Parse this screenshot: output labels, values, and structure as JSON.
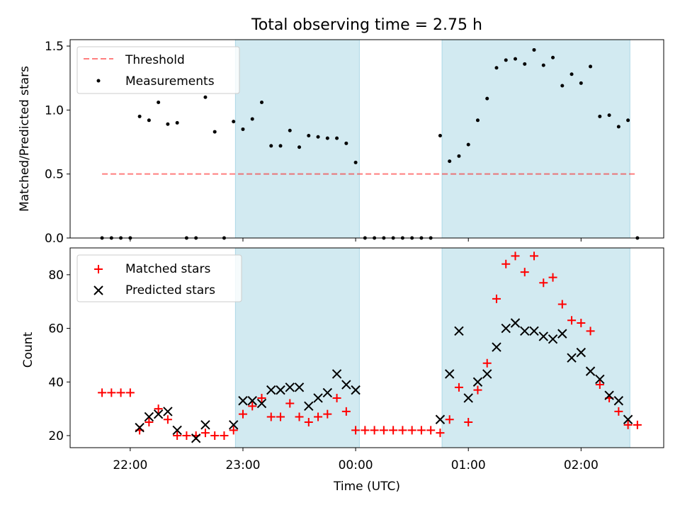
{
  "title": "Total observing time = 2.75 h",
  "colors": {
    "band": "#add8e6",
    "threshold": "#ff0000",
    "measurement": "#000000",
    "matched": "#ff0000",
    "predicted": "#000000"
  },
  "chart_data": [
    {
      "type": "scatter",
      "panel": "top",
      "ylabel": "Matched/Predicted stars",
      "ylim": [
        0,
        1.55
      ],
      "yticks": [
        0,
        0.5,
        1.0,
        1.5
      ],
      "ytick_labels": [
        "0.0",
        "0.5",
        "1.0",
        "1.5"
      ],
      "xlim": [
        "21:28",
        "02:44"
      ],
      "xticks": [
        "22:00",
        "23:00",
        "00:00",
        "01:00",
        "02:00"
      ],
      "legend": "top-left",
      "shaded_intervals": [
        [
          "22:56",
          "00:02"
        ],
        [
          "00:46",
          "02:26"
        ]
      ],
      "series": [
        {
          "name": "Threshold",
          "style": "dashed-line",
          "x": [
            "21:45",
            "02:29"
          ],
          "y": [
            0.5,
            0.5
          ]
        },
        {
          "name": "Measurements",
          "style": "dot",
          "x": [
            "21:45",
            "21:50",
            "21:55",
            "22:00",
            "22:05",
            "22:10",
            "22:15",
            "22:20",
            "22:25",
            "22:30",
            "22:35",
            "22:40",
            "22:45",
            "22:50",
            "22:55",
            "23:00",
            "23:05",
            "23:10",
            "23:15",
            "23:20",
            "23:25",
            "23:30",
            "23:35",
            "23:40",
            "23:45",
            "23:50",
            "23:55",
            "00:00",
            "00:05",
            "00:10",
            "00:15",
            "00:20",
            "00:25",
            "00:30",
            "00:35",
            "00:40",
            "00:45",
            "00:50",
            "00:55",
            "01:00",
            "01:05",
            "01:10",
            "01:15",
            "01:20",
            "01:25",
            "01:30",
            "01:35",
            "01:40",
            "01:45",
            "01:50",
            "01:55",
            "02:00",
            "02:05",
            "02:10",
            "02:15",
            "02:20",
            "02:25",
            "02:30"
          ],
          "y": [
            0.0,
            0.0,
            0.0,
            0.0,
            0.95,
            0.92,
            1.06,
            0.89,
            0.9,
            0.0,
            0.0,
            1.1,
            0.83,
            0.0,
            0.91,
            0.85,
            0.93,
            1.06,
            0.72,
            0.72,
            0.84,
            0.71,
            0.8,
            0.79,
            0.78,
            0.78,
            0.74,
            0.59,
            0.0,
            0.0,
            0.0,
            0.0,
            0.0,
            0.0,
            0.0,
            0.0,
            0.8,
            0.6,
            0.64,
            0.73,
            0.92,
            1.09,
            1.33,
            1.39,
            1.4,
            1.36,
            1.47,
            1.35,
            1.41,
            1.19,
            1.28,
            1.21,
            1.34,
            0.95,
            0.96,
            0.87,
            0.92,
            0.0
          ]
        }
      ]
    },
    {
      "type": "scatter",
      "panel": "bottom",
      "xlabel": "Time (UTC)",
      "ylabel": "Count",
      "ylim": [
        15.5,
        90
      ],
      "yticks": [
        20,
        40,
        60,
        80
      ],
      "ytick_labels": [
        "20",
        "40",
        "60",
        "80"
      ],
      "xlim": [
        "21:28",
        "02:44"
      ],
      "xticks": [
        "22:00",
        "23:00",
        "00:00",
        "01:00",
        "02:00"
      ],
      "legend": "top-left",
      "shaded_intervals": [
        [
          "22:56",
          "00:02"
        ],
        [
          "00:46",
          "02:26"
        ]
      ],
      "series": [
        {
          "name": "Matched stars",
          "style": "plus",
          "x": [
            "21:45",
            "21:50",
            "21:55",
            "22:00",
            "22:05",
            "22:10",
            "22:15",
            "22:20",
            "22:25",
            "22:30",
            "22:35",
            "22:40",
            "22:45",
            "22:50",
            "22:55",
            "23:00",
            "23:05",
            "23:10",
            "23:15",
            "23:20",
            "23:25",
            "23:30",
            "23:35",
            "23:40",
            "23:45",
            "23:50",
            "23:55",
            "00:00",
            "00:05",
            "00:10",
            "00:15",
            "00:20",
            "00:25",
            "00:30",
            "00:35",
            "00:40",
            "00:45",
            "00:50",
            "00:55",
            "01:00",
            "01:05",
            "01:10",
            "01:15",
            "01:20",
            "01:25",
            "01:30",
            "01:35",
            "01:40",
            "01:45",
            "01:50",
            "01:55",
            "02:00",
            "02:05",
            "02:10",
            "02:15",
            "02:20",
            "02:25",
            "02:30"
          ],
          "y": [
            36,
            36,
            36,
            36,
            22,
            25,
            30,
            26,
            20,
            20,
            20,
            21,
            20,
            20,
            22,
            28,
            31,
            34,
            27,
            27,
            32,
            27,
            25,
            27,
            28,
            34,
            29,
            22,
            22,
            22,
            22,
            22,
            22,
            22,
            22,
            22,
            21,
            26,
            38,
            25,
            37,
            47,
            71,
            84,
            87,
            81,
            87,
            77,
            79,
            69,
            63,
            62,
            59,
            39,
            34,
            29,
            24,
            24
          ]
        },
        {
          "name": "Predicted stars",
          "style": "cross",
          "x": [
            "22:05",
            "22:10",
            "22:15",
            "22:20",
            "22:25",
            "22:35",
            "22:40",
            "22:55",
            "23:00",
            "23:05",
            "23:10",
            "23:15",
            "23:20",
            "23:25",
            "23:30",
            "23:35",
            "23:40",
            "23:45",
            "23:50",
            "23:55",
            "00:00",
            "00:45",
            "00:50",
            "00:55",
            "01:00",
            "01:05",
            "01:10",
            "01:15",
            "01:20",
            "01:25",
            "01:30",
            "01:35",
            "01:40",
            "01:45",
            "01:50",
            "01:55",
            "02:00",
            "02:05",
            "02:10",
            "02:15",
            "02:20",
            "02:25"
          ],
          "y": [
            23,
            27,
            28,
            29,
            22,
            19,
            24,
            24,
            33,
            33,
            32,
            37,
            37,
            38,
            38,
            31,
            34,
            36,
            43,
            39,
            37,
            26,
            43,
            59,
            34,
            40,
            43,
            53,
            60,
            62,
            59,
            59,
            57,
            56,
            58,
            49,
            51,
            44,
            41,
            35,
            33,
            26
          ]
        }
      ]
    }
  ]
}
